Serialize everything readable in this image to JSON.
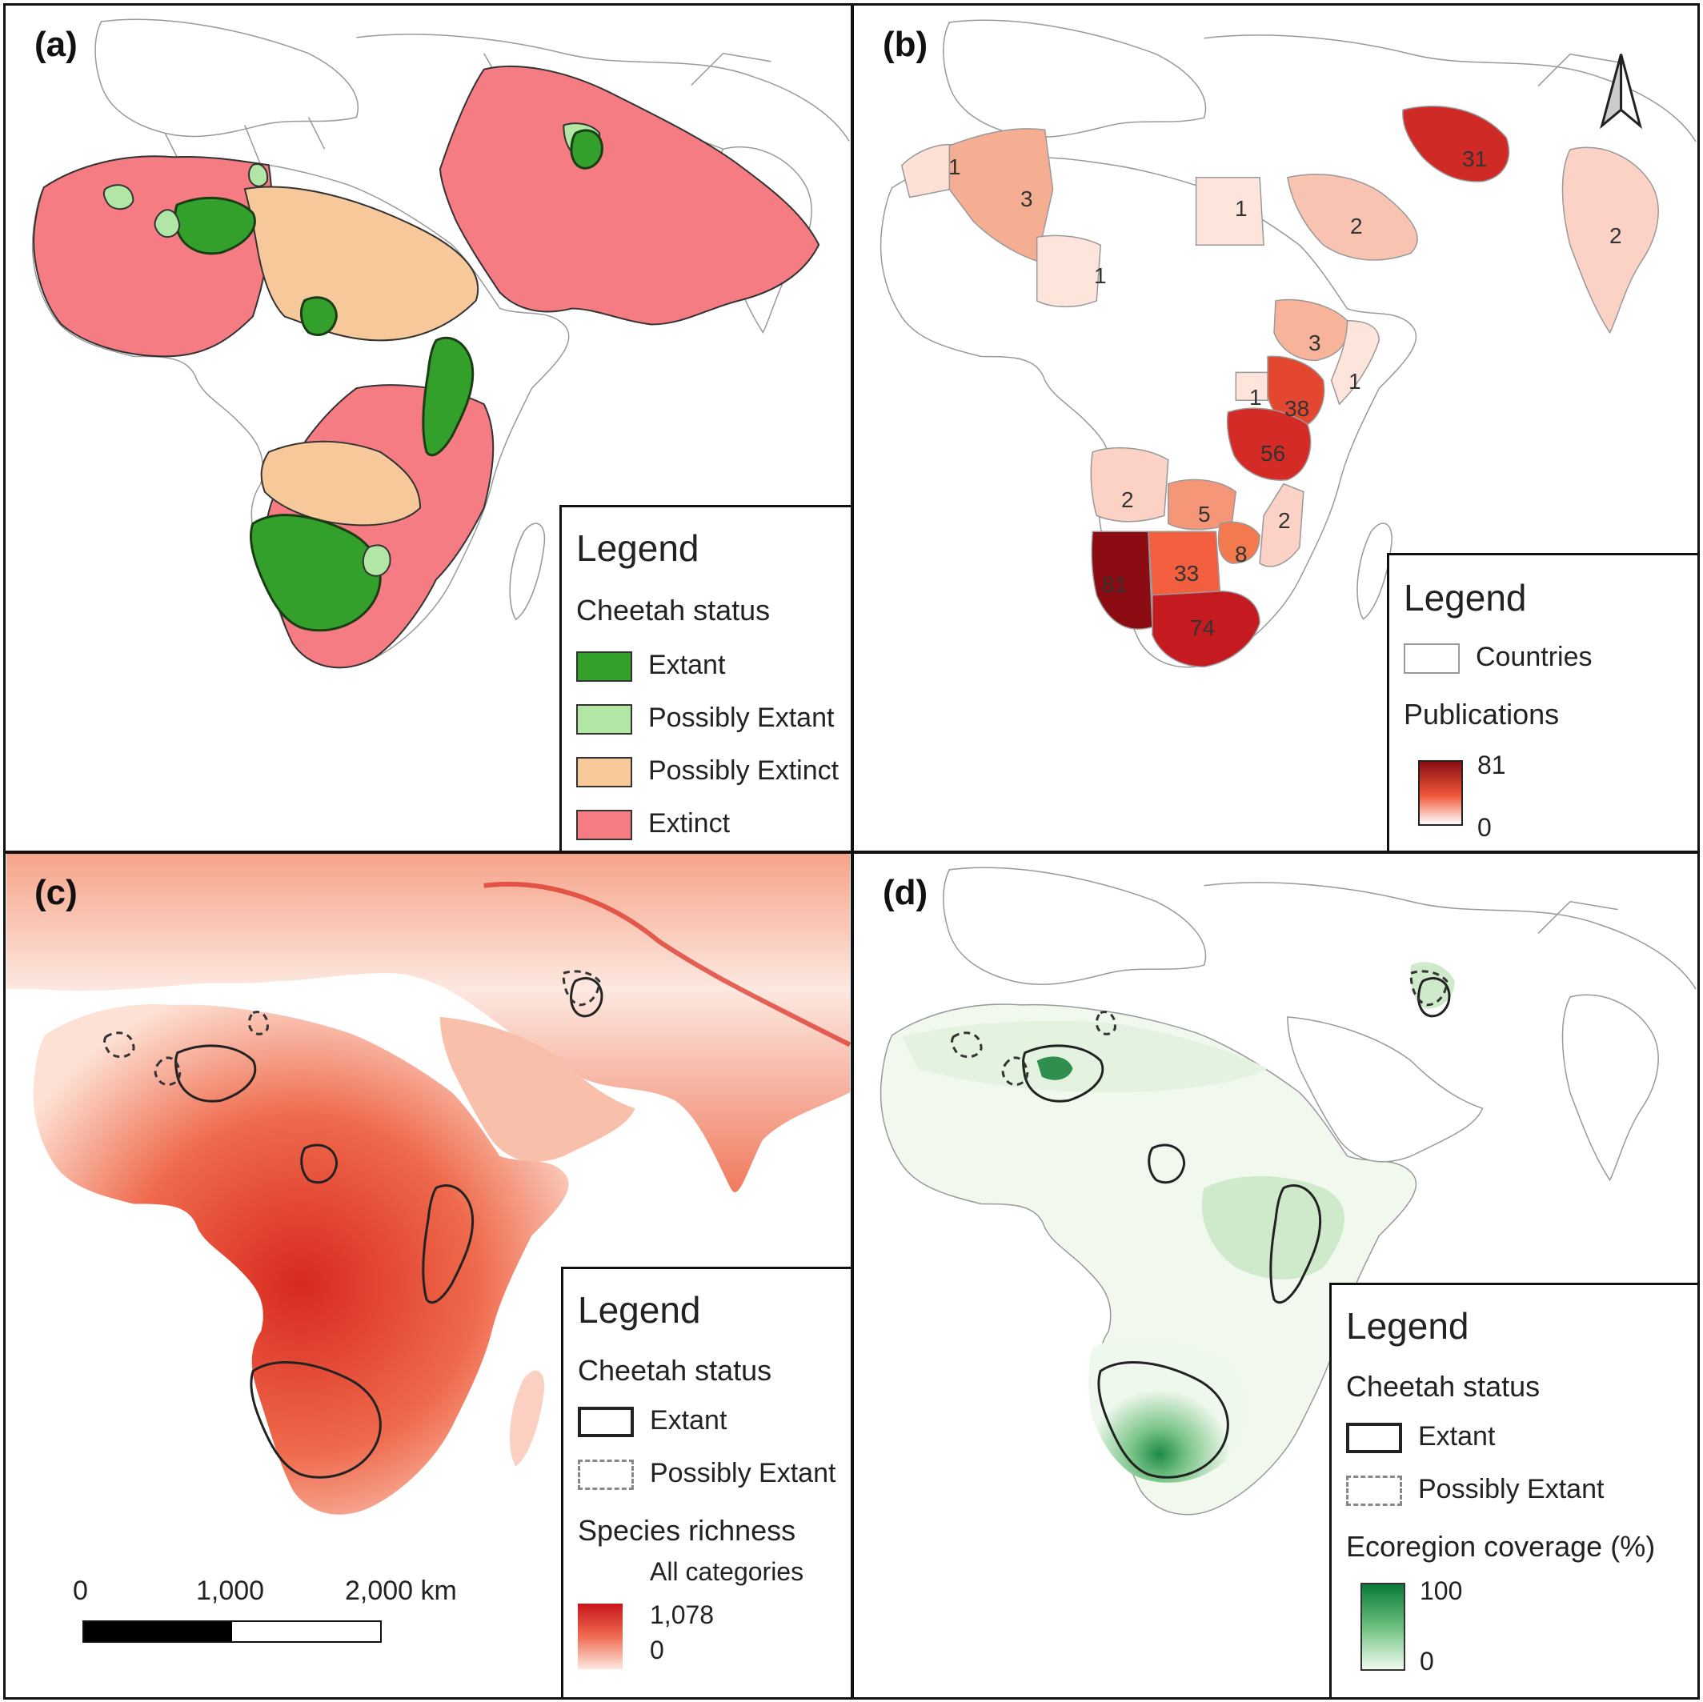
{
  "panels": {
    "a": {
      "label": "(a)",
      "legend": {
        "title": "Legend",
        "subtitle": "Cheetah status",
        "items": [
          {
            "label": "Extant",
            "color": "#33a02c"
          },
          {
            "label": "Possibly Extant",
            "color": "#b2e6a4"
          },
          {
            "label": "Possibly Extinct",
            "color": "#f6c89a"
          },
          {
            "label": "Extinct",
            "color": "#f47c82"
          }
        ]
      }
    },
    "b": {
      "label": "(b)",
      "legend": {
        "title": "Legend",
        "countries_label": "Countries",
        "publications_label": "Publications",
        "max_label": "81",
        "min_label": "0",
        "ramp_colors": [
          "#8b0c13",
          "#ffffff"
        ]
      },
      "country_counts": [
        {
          "country": "Morocco",
          "value": "1"
        },
        {
          "country": "Algeria",
          "value": "3"
        },
        {
          "country": "Niger",
          "value": "1"
        },
        {
          "country": "Egypt",
          "value": "1"
        },
        {
          "country": "Saudi Arabia",
          "value": "2"
        },
        {
          "country": "Iran",
          "value": "31"
        },
        {
          "country": "India",
          "value": "2"
        },
        {
          "country": "Ethiopia",
          "value": "3"
        },
        {
          "country": "Somalia",
          "value": "1"
        },
        {
          "country": "Uganda",
          "value": "1"
        },
        {
          "country": "Kenya",
          "value": "38"
        },
        {
          "country": "Tanzania",
          "value": "56"
        },
        {
          "country": "Angola",
          "value": "2"
        },
        {
          "country": "Zambia",
          "value": "5"
        },
        {
          "country": "Mozambique",
          "value": "2"
        },
        {
          "country": "Zimbabwe",
          "value": "8"
        },
        {
          "country": "Namibia",
          "value": "81"
        },
        {
          "country": "Botswana",
          "value": "33"
        },
        {
          "country": "South Africa",
          "value": "74"
        }
      ]
    },
    "c": {
      "label": "(c)",
      "legend": {
        "title": "Legend",
        "subtitle": "Cheetah status",
        "items": [
          {
            "label": "Extant",
            "style": "solid"
          },
          {
            "label": "Possibly Extant",
            "style": "dashed"
          }
        ],
        "richness_label": "Species richness",
        "richness_sub": "All categories",
        "max_label": "1,078",
        "min_label": "0",
        "ramp_colors": [
          "#c8151b",
          "#fde8e0"
        ]
      },
      "scalebar": {
        "labels": [
          "0",
          "1,000",
          "2,000 km"
        ]
      }
    },
    "d": {
      "label": "(d)",
      "legend": {
        "title": "Legend",
        "subtitle": "Cheetah status",
        "items": [
          {
            "label": "Extant",
            "style": "solid"
          },
          {
            "label": "Possibly Extant",
            "style": "dashed"
          }
        ],
        "coverage_label": "Ecoregion coverage (%)",
        "max_label": "100",
        "min_label": "0",
        "ramp_colors": [
          "#0a7a3b",
          "#f1fbef"
        ]
      }
    }
  }
}
